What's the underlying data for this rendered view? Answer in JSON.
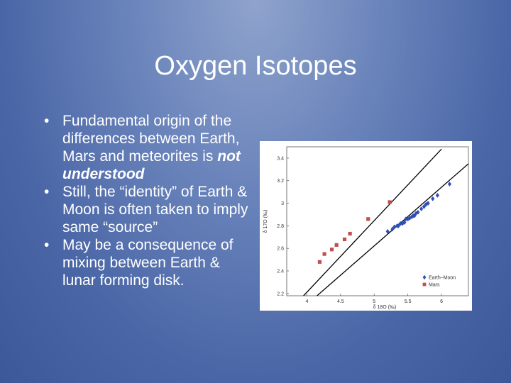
{
  "slide": {
    "title": "Oxygen Isotopes",
    "bullets": [
      {
        "text": "Fundamental origin of the differences between Earth, Mars and meteorites is ",
        "emphasis": "not understood"
      },
      {
        "text": "Still, the “identity” of Earth & Moon is often taken to imply same “source”"
      },
      {
        "text": "May be a consequence of mixing between Earth & lunar forming disk."
      }
    ]
  },
  "chart_data": {
    "type": "scatter",
    "xlabel": "δ 18O (‰)",
    "ylabel": "δ 17O (‰)",
    "xlim": [
      3.7,
      6.4
    ],
    "ylim": [
      2.18,
      3.5
    ],
    "xticks": [
      "4",
      "4.5",
      "5",
      "5.5",
      "6"
    ],
    "xtick_values": [
      4,
      4.5,
      5,
      5.5,
      6
    ],
    "yticks": [
      "2.2",
      "2.4",
      "2.6",
      "2.8",
      "3",
      "3.2",
      "3.4"
    ],
    "ytick_values": [
      2.2,
      2.4,
      2.6,
      2.8,
      3.0,
      3.2,
      3.4
    ],
    "legend": "bottom-right",
    "series": [
      {
        "name": "Earth–Moon",
        "marker": "diamond",
        "color": "#2f4fb5",
        "x": [
          5.2,
          5.27,
          5.3,
          5.34,
          5.36,
          5.39,
          5.42,
          5.45,
          5.47,
          5.5,
          5.53,
          5.56,
          5.58,
          5.6,
          5.62,
          5.65,
          5.7,
          5.74,
          5.77,
          5.8,
          5.87,
          5.94,
          6.12
        ],
        "y": [
          2.75,
          2.77,
          2.79,
          2.8,
          2.8,
          2.82,
          2.82,
          2.83,
          2.86,
          2.86,
          2.87,
          2.88,
          2.89,
          2.89,
          2.91,
          2.92,
          2.95,
          2.97,
          2.99,
          3.0,
          3.04,
          3.07,
          3.17
        ]
      },
      {
        "name": "Mars",
        "marker": "square",
        "color": "#c0504d",
        "x": [
          4.19,
          4.26,
          4.37,
          4.44,
          4.56,
          4.64,
          4.91,
          5.23
        ],
        "y": [
          2.48,
          2.55,
          2.59,
          2.63,
          2.68,
          2.73,
          2.86,
          3.01
        ]
      }
    ],
    "fit_lines": [
      {
        "name": "Mars fractionation line",
        "color": "#000000",
        "x": [
          3.95,
          6.0
        ],
        "y": [
          2.18,
          3.48
        ]
      },
      {
        "name": "Terrestrial fractionation line",
        "color": "#000000",
        "x": [
          4.15,
          6.4
        ],
        "y": [
          2.18,
          3.35
        ]
      }
    ]
  }
}
